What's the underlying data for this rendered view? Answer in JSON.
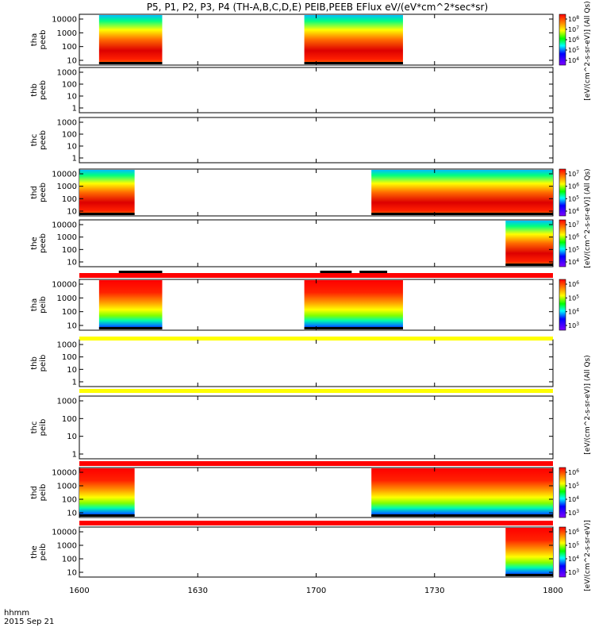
{
  "title": "P5, P1, P2, P3, P4 (TH-A,B,C,D,E) PEIB,PEEB EFlux eV/(eV*cm^2*sec*sr)",
  "time_axis": {
    "tick_labels": [
      "1600",
      "1630",
      "1700",
      "1730",
      "1800"
    ],
    "label": "hhmm",
    "date": "2015 Sep 21"
  },
  "colorbar_labels": {
    "long": "[eV/(cm^2-s-sr-eV)]  (All Qs)",
    "short": "[eV/(cm^2-s-sr-eV)]"
  },
  "chart_data": [
    {
      "type": "heatmap",
      "probe": "tha",
      "quantity": "peeb",
      "ylabel": [
        "tha",
        "peeb"
      ],
      "yticks": [
        "10",
        "100",
        "1000",
        "10000"
      ],
      "log_y": true,
      "colorbar_ticks": [
        "10^8",
        "10^7",
        "10^6",
        "10^5",
        "10^4"
      ],
      "data_intervals": [
        [
          "16:05",
          "16:21"
        ],
        [
          "16:57",
          "17:22"
        ]
      ]
    },
    {
      "type": "heatmap",
      "probe": "thb",
      "quantity": "peeb",
      "ylabel": [
        "thb",
        "peeb"
      ],
      "yticks": [
        "1",
        "10",
        "100",
        "1000"
      ],
      "log_y": true,
      "data_intervals": []
    },
    {
      "type": "heatmap",
      "probe": "thc",
      "quantity": "peeb",
      "ylabel": [
        "thc",
        "peeb"
      ],
      "yticks": [
        "1",
        "10",
        "100",
        "1000"
      ],
      "log_y": true,
      "data_intervals": []
    },
    {
      "type": "heatmap",
      "probe": "thd",
      "quantity": "peeb",
      "ylabel": [
        "thd",
        "peeb"
      ],
      "yticks": [
        "10",
        "100",
        "1000",
        "10000"
      ],
      "log_y": true,
      "colorbar_ticks": [
        "10^7",
        "10^6",
        "10^5",
        "10^4"
      ],
      "data_intervals": [
        [
          "16:00",
          "16:14"
        ],
        [
          "17:14",
          "18:00"
        ]
      ]
    },
    {
      "type": "heatmap",
      "probe": "the",
      "quantity": "peeb",
      "ylabel": [
        "the",
        "peeb"
      ],
      "yticks": [
        "10",
        "100",
        "1000",
        "10000"
      ],
      "log_y": true,
      "colorbar_ticks": [
        "10^7",
        "10^6",
        "10^5",
        "10^4"
      ],
      "data_intervals": [
        [
          "17:48",
          "18:00"
        ]
      ]
    },
    {
      "type": "heatmap",
      "probe": "tha",
      "quantity": "peib",
      "ylabel": [
        "tha",
        "peib"
      ],
      "yticks": [
        "10",
        "100",
        "1000",
        "10000"
      ],
      "log_y": true,
      "colorbar_ticks": [
        "10^6",
        "10^5",
        "10^4",
        "10^3"
      ],
      "data_intervals": [
        [
          "16:05",
          "16:21"
        ],
        [
          "16:57",
          "17:22"
        ]
      ]
    },
    {
      "type": "heatmap",
      "probe": "thb",
      "quantity": "peib",
      "ylabel": [
        "thb",
        "peib"
      ],
      "yticks": [
        "1",
        "10",
        "100",
        "1000"
      ],
      "log_y": true,
      "data_intervals": []
    },
    {
      "type": "heatmap",
      "probe": "thc",
      "quantity": "peib",
      "ylabel": [
        "thc",
        "peib"
      ],
      "yticks": [
        "1",
        "10",
        "100",
        "1000"
      ],
      "log_y": true,
      "data_intervals": []
    },
    {
      "type": "heatmap",
      "probe": "thd",
      "quantity": "peib",
      "ylabel": [
        "thd",
        "peib"
      ],
      "yticks": [
        "10",
        "100",
        "1000",
        "10000"
      ],
      "log_y": true,
      "colorbar_ticks": [
        "10^6",
        "10^5",
        "10^4",
        "10^3"
      ],
      "data_intervals": [
        [
          "16:00",
          "16:14"
        ],
        [
          "17:14",
          "18:00"
        ]
      ]
    },
    {
      "type": "heatmap",
      "probe": "the",
      "quantity": "peib",
      "ylabel": [
        "the",
        "peib"
      ],
      "yticks": [
        "10",
        "100",
        "1000",
        "10000"
      ],
      "log_y": true,
      "colorbar_ticks": [
        "10^6",
        "10^5",
        "10^4",
        "10^3"
      ],
      "data_intervals": [
        [
          "17:48",
          "18:00"
        ]
      ]
    }
  ],
  "status_bars": [
    {
      "between_panels": [
        4,
        5
      ],
      "color": "#ff0000",
      "black_marks": [
        [
          "16:10",
          "16:21"
        ],
        [
          "17:01",
          "17:09"
        ],
        [
          "17:11",
          "17:18"
        ]
      ]
    },
    {
      "between_panels": [
        5,
        6
      ],
      "color": "#ffff00",
      "black_marks": []
    },
    {
      "between_panels": [
        6,
        7
      ],
      "color": "#ffff00",
      "black_marks": []
    },
    {
      "between_panels": [
        7,
        8
      ],
      "color": "#ff0000",
      "black_marks": []
    },
    {
      "between_panels": [
        8,
        9
      ],
      "color": "#ff0000",
      "black_marks": []
    }
  ]
}
